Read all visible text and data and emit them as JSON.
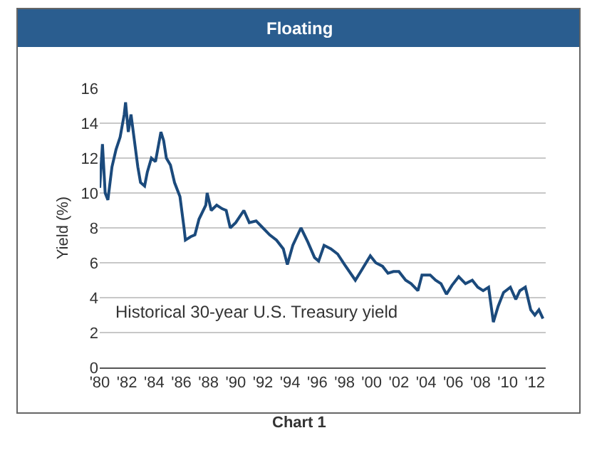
{
  "chart_data": {
    "type": "line",
    "title": "Floating",
    "ylabel": "Yield (%)",
    "annotations": [
      "Chart 1"
    ],
    "xlim": [
      1980,
      2012.8
    ],
    "xticks": [
      {
        "value": 1980,
        "label": "'80"
      },
      {
        "value": 1982,
        "label": "'82"
      },
      {
        "value": 1984,
        "label": "'84"
      },
      {
        "value": 1986,
        "label": "'86"
      },
      {
        "value": 1988,
        "label": "'88"
      },
      {
        "value": 1990,
        "label": "'90"
      },
      {
        "value": 1992,
        "label": "'92"
      },
      {
        "value": 1994,
        "label": "'94"
      },
      {
        "value": 1996,
        "label": "'96"
      },
      {
        "value": 1998,
        "label": "'98"
      },
      {
        "value": 2000,
        "label": "'00"
      },
      {
        "value": 2002,
        "label": "'02"
      },
      {
        "value": 2004,
        "label": "'04"
      },
      {
        "value": 2006,
        "label": "'06"
      },
      {
        "value": 2008,
        "label": "'08"
      },
      {
        "value": 2010,
        "label": "'10"
      },
      {
        "value": 2012,
        "label": "'12"
      }
    ],
    "ylim": [
      0,
      16
    ],
    "yticks": [
      0,
      2,
      4,
      6,
      8,
      10,
      12,
      14,
      16
    ],
    "grid": "y",
    "legend": false,
    "series": [
      {
        "name": "Historical 30-year U.S. Treasury yield",
        "color": "#1b4a7c",
        "x": [
          1980.0,
          1980.2,
          1980.4,
          1980.6,
          1980.9,
          1981.2,
          1981.5,
          1981.8,
          1981.9,
          1982.1,
          1982.3,
          1982.5,
          1982.8,
          1983.0,
          1983.3,
          1983.5,
          1983.8,
          1984.1,
          1984.5,
          1984.7,
          1984.9,
          1985.2,
          1985.5,
          1985.9,
          1986.2,
          1986.3,
          1986.7,
          1987.0,
          1987.3,
          1987.8,
          1987.9,
          1988.2,
          1988.6,
          1989.0,
          1989.3,
          1989.6,
          1990.0,
          1990.6,
          1991.0,
          1991.5,
          1992.0,
          1992.5,
          1993.0,
          1993.5,
          1993.8,
          1994.2,
          1994.8,
          1995.3,
          1995.8,
          1996.1,
          1996.5,
          1997.0,
          1997.5,
          1998.0,
          1998.8,
          1999.2,
          1999.9,
          2000.3,
          2000.8,
          2001.2,
          2001.6,
          2002.0,
          2002.5,
          2002.9,
          2003.4,
          2003.7,
          2004.3,
          2004.7,
          2005.1,
          2005.5,
          2005.9,
          2006.4,
          2006.9,
          2007.4,
          2007.8,
          2008.2,
          2008.6,
          2008.95,
          2009.3,
          2009.7,
          2010.2,
          2010.6,
          2010.9,
          2011.3,
          2011.7,
          2012.0,
          2012.3,
          2012.6
        ],
        "values": [
          10.3,
          12.8,
          10.0,
          9.6,
          11.5,
          12.5,
          13.2,
          14.5,
          15.2,
          13.5,
          14.5,
          13.3,
          11.5,
          10.6,
          10.4,
          11.2,
          12.0,
          11.8,
          13.5,
          13.0,
          12.0,
          11.6,
          10.6,
          9.8,
          8.0,
          7.3,
          7.5,
          7.6,
          8.5,
          9.3,
          10.0,
          9.0,
          9.3,
          9.1,
          9.0,
          8.0,
          8.3,
          9.0,
          8.3,
          8.4,
          8.0,
          7.6,
          7.3,
          6.8,
          5.9,
          7.0,
          8.0,
          7.2,
          6.3,
          6.1,
          7.0,
          6.8,
          6.5,
          5.9,
          5.0,
          5.5,
          6.4,
          6.0,
          5.8,
          5.4,
          5.5,
          5.5,
          5.0,
          4.8,
          4.4,
          5.3,
          5.3,
          5.0,
          4.8,
          4.2,
          4.7,
          5.2,
          4.8,
          5.0,
          4.6,
          4.4,
          4.6,
          2.6,
          3.5,
          4.3,
          4.6,
          3.9,
          4.4,
          4.6,
          3.3,
          3.0,
          3.3,
          2.8
        ]
      }
    ]
  }
}
